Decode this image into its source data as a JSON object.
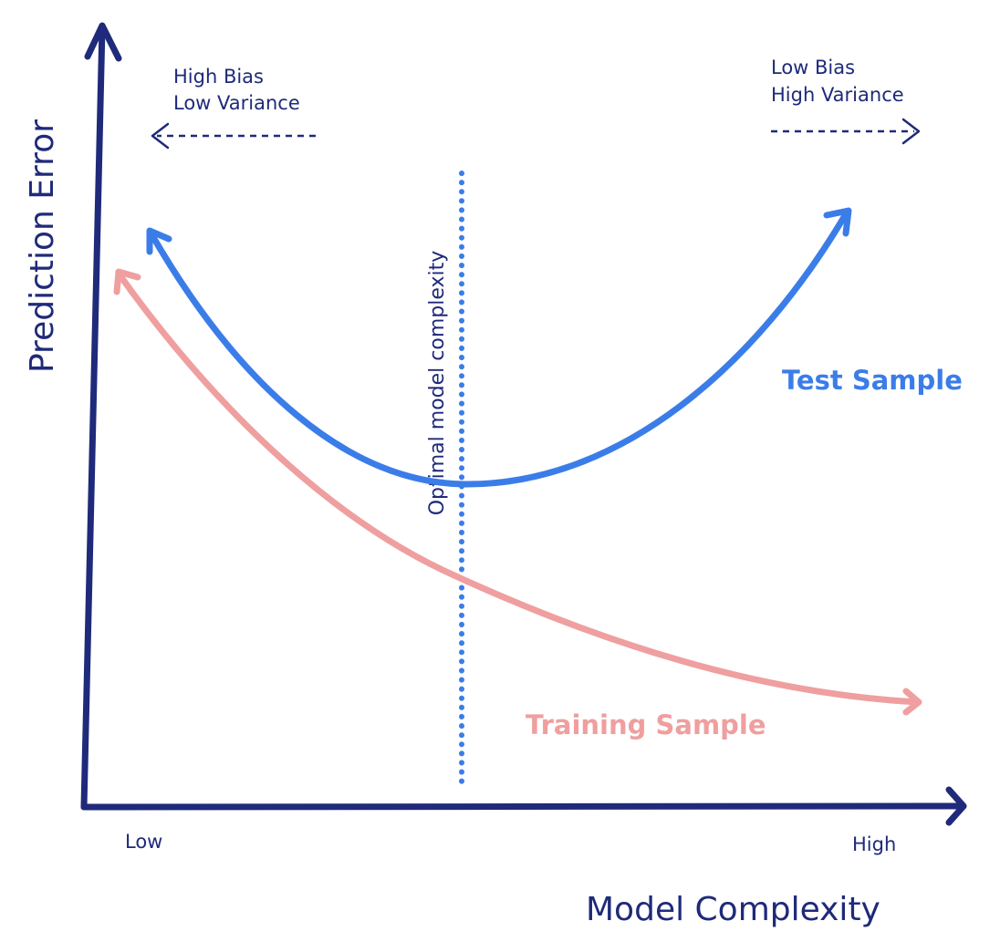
{
  "colors": {
    "axis": "#1f2a7a",
    "test": "#3b7de8",
    "training": "#ef9f9f",
    "optimal_line": "#3b7de8",
    "text": "#1f2a7a"
  },
  "axes": {
    "y_label": "Prediction Error",
    "x_label": "Model Complexity",
    "x_low": "Low",
    "x_high": "High"
  },
  "regions": {
    "left_line1": "High Bias",
    "left_line2": "Low Variance",
    "right_line1": "Low Bias",
    "right_line2": "High Variance"
  },
  "optimal": {
    "label": "Optimal model complexity"
  },
  "series": {
    "test_label": "Test Sample",
    "training_label": "Training Sample"
  }
}
